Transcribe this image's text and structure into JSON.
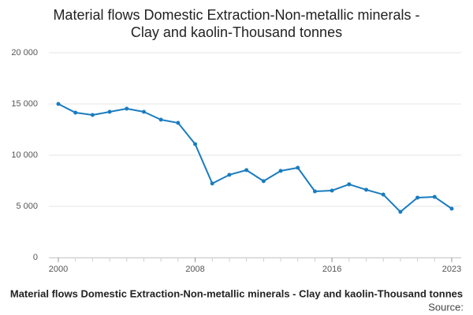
{
  "chart_data": {
    "type": "line",
    "title": [
      "Material flows Domestic Extraction-Non-metallic minerals -",
      "Clay and kaolin-Thousand tonnes"
    ],
    "caption": "Material flows Domestic Extraction-Non-metallic minerals - Clay and kaolin-Thousand tonnes",
    "source": "Source:",
    "x": [
      2000,
      2001,
      2002,
      2003,
      2004,
      2005,
      2006,
      2007,
      2008,
      2009,
      2010,
      2011,
      2012,
      2013,
      2014,
      2015,
      2016,
      2017,
      2018,
      2019,
      2020,
      2021,
      2022,
      2023
    ],
    "series": [
      {
        "name": "Clay and kaolin",
        "color": "#1a7cbf",
        "values": [
          15000,
          14150,
          13920,
          14230,
          14540,
          14230,
          13460,
          13150,
          11080,
          7230,
          8080,
          8540,
          7460,
          8460,
          8770,
          6460,
          6540,
          7150,
          6620,
          6150,
          4460,
          5850,
          5920,
          4770
        ]
      }
    ],
    "xlim": [
      2000,
      2023
    ],
    "xticks": [
      2000,
      2008,
      2016,
      2023
    ],
    "ylim": [
      0,
      20000
    ],
    "yticks": [
      0,
      {
        "value": 5000,
        "label": "5 000"
      },
      {
        "value": 10000,
        "label": "10 000"
      },
      {
        "value": 15000,
        "label": "15 000"
      },
      {
        "value": 20000,
        "label": "20 000"
      }
    ],
    "grid": true
  }
}
